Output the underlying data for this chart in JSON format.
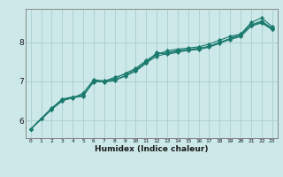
{
  "xlabel": "Humidex (Indice chaleur)",
  "ylabel": "",
  "bg_color": "#cce8e8",
  "line_color": "#1a7a6e",
  "grid_color": "#aacece",
  "axis_color": "#888888",
  "xlim": [
    -0.5,
    23.5
  ],
  "ylim": [
    5.55,
    8.85
  ],
  "xticks": [
    0,
    1,
    2,
    3,
    4,
    5,
    6,
    7,
    8,
    9,
    10,
    11,
    12,
    13,
    14,
    15,
    16,
    17,
    18,
    19,
    20,
    21,
    22,
    23
  ],
  "yticks": [
    6,
    7,
    8
  ],
  "series": [
    {
      "x": [
        0,
        1,
        2,
        3,
        4,
        5,
        6,
        7,
        8,
        9,
        10,
        11,
        12,
        13,
        14,
        15,
        16,
        17,
        18,
        19,
        20,
        21,
        22,
        23
      ],
      "y": [
        5.78,
        6.05,
        6.3,
        6.55,
        6.6,
        6.65,
        6.98,
        7.0,
        7.1,
        7.18,
        7.3,
        7.5,
        7.68,
        7.78,
        7.82,
        7.85,
        7.88,
        7.95,
        8.05,
        8.15,
        8.2,
        8.5,
        8.62,
        8.4
      ]
    },
    {
      "x": [
        0,
        1,
        2,
        3,
        4,
        5,
        6,
        7,
        8,
        9,
        10,
        11,
        12,
        13,
        14,
        15,
        16,
        17,
        18,
        19,
        20,
        21,
        22,
        23
      ],
      "y": [
        5.78,
        6.05,
        6.32,
        6.53,
        6.57,
        6.7,
        7.04,
        7.01,
        7.07,
        7.2,
        7.33,
        7.53,
        7.7,
        7.73,
        7.79,
        7.81,
        7.84,
        7.89,
        7.99,
        8.09,
        8.21,
        8.44,
        8.54,
        8.36
      ]
    },
    {
      "x": [
        0,
        2,
        3,
        4,
        5,
        6,
        7,
        8,
        9,
        10,
        11,
        12,
        13,
        14,
        15,
        16,
        17,
        18,
        19,
        20,
        21,
        22,
        23
      ],
      "y": [
        5.78,
        6.28,
        6.5,
        6.58,
        6.62,
        7.01,
        6.98,
        7.02,
        7.13,
        7.26,
        7.46,
        7.74,
        7.69,
        7.74,
        7.79,
        7.81,
        7.87,
        7.97,
        8.07,
        8.14,
        8.41,
        8.49,
        8.32
      ]
    },
    {
      "x": [
        0,
        2,
        3,
        4,
        5,
        6,
        7,
        8,
        9,
        10,
        11,
        12,
        13,
        14,
        15,
        16,
        17,
        18,
        19,
        20,
        21,
        22,
        23
      ],
      "y": [
        5.78,
        6.29,
        6.51,
        6.59,
        6.63,
        7.0,
        6.99,
        7.04,
        7.14,
        7.27,
        7.47,
        7.64,
        7.71,
        7.77,
        7.81,
        7.84,
        7.89,
        7.99,
        8.09,
        8.17,
        8.43,
        8.51,
        8.34
      ]
    }
  ]
}
